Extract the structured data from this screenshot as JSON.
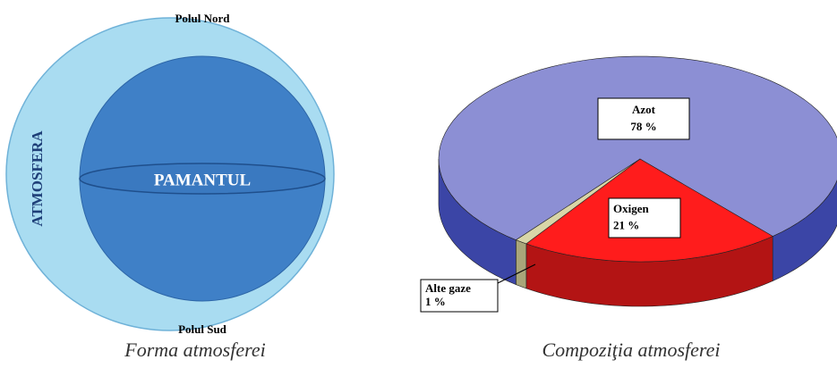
{
  "diagram": {
    "top_label": "Polul Nord",
    "bottom_label": "Polul Sud",
    "outer_label": "ATMOSFERA",
    "inner_label": "PAMANTUL",
    "caption": "Forma atmosferei"
  },
  "chart_data": {
    "type": "pie",
    "caption": "Compoziţia atmosferei",
    "categories": [
      "Azot",
      "Oxigen",
      "Alte gaze"
    ],
    "values": [
      78,
      21,
      1
    ],
    "value_labels": [
      "78 %",
      "21 %",
      "1 %"
    ],
    "colors": [
      "#8c8fd4",
      "#ff1c1c",
      "#d9d6a8"
    ],
    "side_colors": [
      "#3b45a6",
      "#b31414",
      "#a9a67a"
    ]
  }
}
